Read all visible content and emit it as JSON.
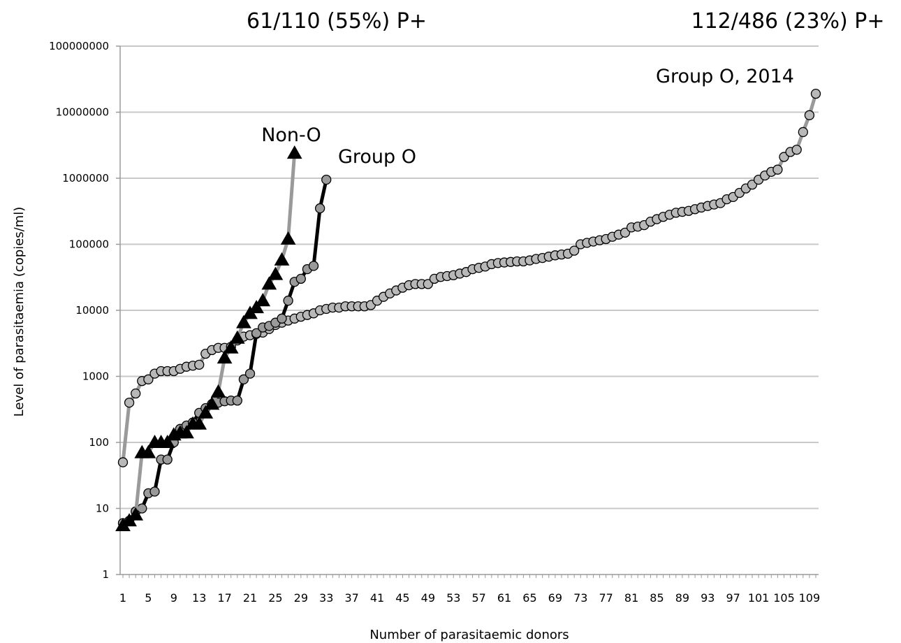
{
  "chart_data": {
    "type": "line",
    "y_scale": "log",
    "ylim": [
      1,
      100000000
    ],
    "xlim": [
      1,
      110
    ],
    "grid": true,
    "xlabel": "Number of parasitaemic donors",
    "ylabel": "Level of parasitaemia (copies/ml)",
    "y_ticks": [
      "1",
      "10",
      "100",
      "1000",
      "10000",
      "100000",
      "1000000",
      "10000000",
      "100000000"
    ],
    "x_ticks": [
      "1",
      "5",
      "9",
      "13",
      "17",
      "21",
      "25",
      "29",
      "33",
      "37",
      "41",
      "45",
      "49",
      "53",
      "57",
      "61",
      "65",
      "69",
      "73",
      "77",
      "81",
      "85",
      "89",
      "93",
      "97",
      "101",
      "105",
      "109"
    ],
    "headers": [
      "61/110 (55%) P+",
      "112/486 (23%) P+"
    ],
    "annotations": [
      "Non-O",
      "Group O",
      "Group O, 2014"
    ],
    "series": [
      {
        "name": "Group O, 2014",
        "marker": "circle",
        "line_color": "#9a9a9a",
        "marker_fill": "#b8b8b8",
        "x": [
          1,
          2,
          3,
          4,
          5,
          6,
          7,
          8,
          9,
          10,
          11,
          12,
          13,
          14,
          15,
          16,
          17,
          18,
          19,
          20,
          21,
          22,
          23,
          24,
          25,
          26,
          27,
          28,
          29,
          30,
          31,
          32,
          33,
          34,
          35,
          36,
          37,
          38,
          39,
          40,
          41,
          42,
          43,
          44,
          45,
          46,
          47,
          48,
          49,
          50,
          51,
          52,
          53,
          54,
          55,
          56,
          57,
          58,
          59,
          60,
          61,
          62,
          63,
          64,
          65,
          66,
          67,
          68,
          69,
          70,
          71,
          72,
          73,
          74,
          75,
          76,
          77,
          78,
          79,
          80,
          81,
          82,
          83,
          84,
          85,
          86,
          87,
          88,
          89,
          90,
          91,
          92,
          93,
          94,
          95,
          96,
          97,
          98,
          99,
          100,
          101,
          102,
          103,
          104,
          105,
          106,
          107,
          108,
          109,
          110
        ],
        "values": [
          50,
          400,
          550,
          850,
          900,
          1100,
          1200,
          1200,
          1200,
          1300,
          1400,
          1450,
          1500,
          2200,
          2500,
          2700,
          2700,
          2800,
          3500,
          4000,
          4200,
          4400,
          4600,
          5200,
          6000,
          6500,
          7000,
          7500,
          8000,
          8500,
          9000,
          10000,
          10500,
          11000,
          11000,
          11500,
          11500,
          11500,
          11500,
          12000,
          14000,
          16000,
          18000,
          20000,
          22000,
          24000,
          25000,
          25000,
          25000,
          30000,
          32000,
          33000,
          34000,
          36000,
          38000,
          42000,
          44000,
          46000,
          50000,
          52000,
          53000,
          54000,
          55000,
          55000,
          57000,
          60000,
          62000,
          65000,
          68000,
          70000,
          72000,
          80000,
          100000,
          105000,
          110000,
          115000,
          120000,
          130000,
          140000,
          150000,
          180000,
          185000,
          195000,
          220000,
          240000,
          260000,
          280000,
          300000,
          310000,
          320000,
          340000,
          360000,
          380000,
          400000,
          420000,
          480000,
          520000,
          600000,
          700000,
          800000,
          950000,
          1100000,
          1250000,
          1350000,
          2100000,
          2500000,
          2700000,
          5000000,
          9000000,
          19000000
        ]
      },
      {
        "name": "Group O",
        "marker": "circle",
        "line_color": "#000000",
        "marker_fill": "#9a9a9a",
        "x": [
          1,
          2,
          3,
          4,
          5,
          6,
          7,
          8,
          9,
          10,
          11,
          12,
          13,
          14,
          15,
          16,
          17,
          18,
          19,
          20,
          21,
          22,
          23,
          24,
          25,
          26,
          27,
          28,
          29,
          30,
          31,
          32,
          33
        ],
        "values": [
          6,
          6.5,
          9,
          10,
          17,
          18,
          55,
          55,
          100,
          160,
          180,
          200,
          280,
          330,
          380,
          400,
          420,
          430,
          430,
          900,
          1100,
          4500,
          5500,
          5800,
          6500,
          7500,
          14000,
          27000,
          30000,
          42000,
          47000,
          350000,
          950000
        ]
      },
      {
        "name": "Non-O",
        "marker": "triangle",
        "line_color": "#9a9a9a",
        "marker_fill": "#000000",
        "x": [
          1,
          2,
          3,
          4,
          5,
          6,
          7,
          8,
          9,
          10,
          11,
          12,
          13,
          14,
          15,
          16,
          17,
          18,
          19,
          20,
          21,
          22,
          23,
          24,
          25,
          26,
          27,
          28
        ],
        "values": [
          5.5,
          6.5,
          8,
          70,
          70,
          100,
          100,
          100,
          130,
          140,
          140,
          190,
          190,
          280,
          380,
          580,
          1900,
          2700,
          3800,
          6500,
          9000,
          11000,
          14000,
          25000,
          35000,
          58000,
          120000,
          2400000
        ]
      }
    ]
  }
}
